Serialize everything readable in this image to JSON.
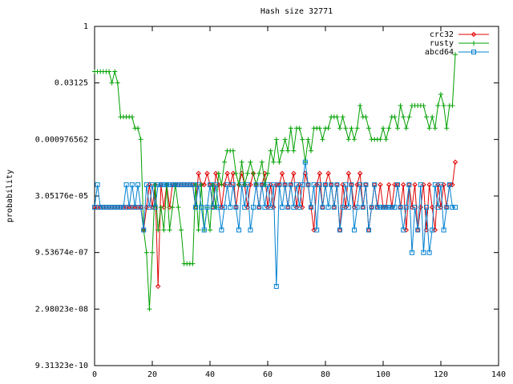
{
  "chart_data": {
    "type": "line",
    "title": "Hash size 32771",
    "y_label": "probability",
    "log_scale": "y",
    "log_base": 2,
    "legend": "upper right",
    "xlim": [
      0,
      140
    ],
    "xticks": [
      0,
      20,
      40,
      60,
      80,
      100,
      120,
      140
    ],
    "ylim": [
      9.31323e-10,
      1
    ],
    "yticks": [
      1,
      0.03125,
      0.000976562,
      {
        "value": 3.05176e-05,
        "label": "3.05176e-05"
      },
      {
        "value": 9.53674e-07,
        "label": "9.53674e-07"
      },
      {
        "value": 2.98023e-08,
        "label": "2.98023e-08"
      },
      {
        "value": 9.31323e-10,
        "label": "9.31323e-10"
      }
    ],
    "x": [
      0,
      1,
      2,
      3,
      4,
      5,
      6,
      7,
      8,
      9,
      10,
      11,
      12,
      13,
      14,
      15,
      16,
      17,
      18,
      19,
      20,
      21,
      22,
      23,
      24,
      25,
      26,
      27,
      28,
      29,
      30,
      31,
      32,
      33,
      34,
      35,
      36,
      37,
      38,
      39,
      40,
      41,
      42,
      43,
      44,
      45,
      46,
      47,
      48,
      49,
      50,
      51,
      52,
      53,
      54,
      55,
      56,
      57,
      58,
      59,
      60,
      61,
      62,
      63,
      64,
      65,
      66,
      67,
      68,
      69,
      70,
      71,
      72,
      73,
      74,
      75,
      76,
      77,
      78,
      79,
      80,
      81,
      82,
      83,
      84,
      85,
      86,
      87,
      88,
      89,
      90,
      91,
      92,
      93,
      94,
      95,
      96,
      97,
      98,
      99,
      100,
      101,
      102,
      103,
      104,
      105,
      106,
      107,
      108,
      109,
      110,
      111,
      112,
      113,
      114,
      115,
      116,
      117,
      118,
      119,
      120,
      121,
      122,
      123,
      124,
      125
    ],
    "series": [
      {
        "name": "crc32",
        "color": "#e00000",
        "marker": "diamond",
        "values": [
          1.53e-05,
          1.53e-05,
          1.53e-05,
          1.53e-05,
          1.53e-05,
          1.53e-05,
          1.53e-05,
          1.53e-05,
          1.53e-05,
          1.53e-05,
          1.53e-05,
          1.53e-05,
          1.53e-05,
          1.53e-05,
          1.53e-05,
          1.53e-05,
          1.53e-05,
          3.8e-06,
          1.53e-05,
          6.1e-05,
          1.53e-05,
          6.1e-05,
          1.2e-07,
          6.1e-05,
          1.53e-05,
          6.1e-05,
          1.53e-05,
          6.1e-05,
          6.1e-05,
          6.1e-05,
          6.1e-05,
          6.1e-05,
          6.1e-05,
          6.1e-05,
          6.1e-05,
          1.53e-05,
          0.000122,
          6.1e-05,
          6.1e-05,
          0.000122,
          6.1e-05,
          1.53e-05,
          0.000122,
          6.1e-05,
          1.53e-05,
          6.1e-05,
          0.000122,
          6.1e-05,
          0.000122,
          1.53e-05,
          6.1e-05,
          0.000122,
          6.1e-05,
          1.53e-05,
          6.1e-05,
          0.000122,
          6.1e-05,
          1.53e-05,
          6.1e-05,
          0.000122,
          1.53e-05,
          6.1e-05,
          1.53e-05,
          6.1e-05,
          6.1e-05,
          0.000122,
          6.1e-05,
          1.53e-05,
          6.1e-05,
          0.000122,
          1.53e-05,
          6.1e-05,
          1.53e-05,
          0.000122,
          6.1e-05,
          1.53e-05,
          3.8e-06,
          6.1e-05,
          0.000122,
          1.53e-05,
          6.1e-05,
          0.000122,
          6.1e-05,
          1.53e-05,
          6.1e-05,
          3.8e-06,
          6.1e-05,
          1.53e-05,
          0.000122,
          6.1e-05,
          1.53e-05,
          6.1e-05,
          0.000122,
          1.53e-05,
          6.1e-05,
          3.8e-06,
          1.53e-05,
          6.1e-05,
          1.53e-05,
          6.1e-05,
          1.53e-05,
          1.53e-05,
          6.1e-05,
          1.53e-05,
          6.1e-05,
          6.1e-05,
          1.53e-05,
          6.1e-05,
          3.8e-06,
          6.1e-05,
          1.53e-05,
          6.1e-05,
          3.8e-06,
          1.53e-05,
          6.1e-05,
          3.8e-06,
          6.1e-05,
          1.53e-05,
          3.8e-06,
          6.1e-05,
          1.53e-05,
          6.1e-05,
          1.53e-05,
          6.1e-05,
          6.1e-05,
          0.000244
        ]
      },
      {
        "name": "rusty",
        "color": "#00a000",
        "marker": "plus",
        "values": [
          0.0625,
          0.0625,
          0.0625,
          0.0625,
          0.0625,
          0.0625,
          0.03125,
          0.0625,
          0.03125,
          0.0039,
          0.0039,
          0.0039,
          0.0039,
          0.0039,
          0.00195,
          0.00195,
          0.00098,
          3.8e-06,
          9.5e-07,
          3e-08,
          9.5e-07,
          6.1e-05,
          3.8e-06,
          1.53e-05,
          3.8e-06,
          6.1e-05,
          3.8e-06,
          1.53e-05,
          6.1e-05,
          1.53e-05,
          3.8e-06,
          4.8e-07,
          4.8e-07,
          4.8e-07,
          4.8e-07,
          6.1e-05,
          3.8e-06,
          6.1e-05,
          3.8e-06,
          1.53e-05,
          3.8e-06,
          6.1e-05,
          1.53e-05,
          0.000122,
          6.1e-05,
          0.000244,
          0.000488,
          0.000488,
          0.000488,
          0.000122,
          6.1e-05,
          0.000244,
          6.1e-05,
          0.000122,
          0.000244,
          0.000122,
          6.1e-05,
          0.000122,
          0.000244,
          6.1e-05,
          0.000122,
          0.000488,
          0.000244,
          0.000976,
          0.000244,
          0.000488,
          0.000976,
          0.000488,
          0.00195,
          0.000488,
          0.00195,
          0.00195,
          0.000976,
          0.000244,
          0.000976,
          0.000488,
          0.00195,
          0.00195,
          0.00195,
          0.000976,
          0.00195,
          0.00195,
          0.0039,
          0.0039,
          0.0039,
          0.00195,
          0.0039,
          0.00195,
          0.00098,
          0.00195,
          0.00098,
          0.00195,
          0.0078,
          0.0039,
          0.0039,
          0.00195,
          0.00098,
          0.00098,
          0.00098,
          0.00098,
          0.00195,
          0.00098,
          0.00195,
          0.0039,
          0.0039,
          0.00195,
          0.0078,
          0.0039,
          0.00195,
          0.0039,
          0.0078,
          0.0078,
          0.0078,
          0.0078,
          0.0078,
          0.0039,
          0.00195,
          0.0039,
          0.00195,
          0.0078,
          0.0156,
          0.0078,
          0.00195,
          0.0078,
          0.0078,
          0.177
        ]
      },
      {
        "name": "abcd64",
        "color": "#0080d0",
        "marker": "square",
        "values": [
          1.53e-05,
          6.1e-05,
          1.53e-05,
          1.53e-05,
          1.53e-05,
          1.53e-05,
          1.53e-05,
          1.53e-05,
          1.53e-05,
          1.53e-05,
          1.53e-05,
          6.1e-05,
          1.53e-05,
          6.1e-05,
          1.53e-05,
          6.1e-05,
          1.53e-05,
          3.8e-06,
          6.1e-05,
          1.53e-05,
          6.1e-05,
          1.53e-05,
          6.1e-05,
          6.1e-05,
          6.1e-05,
          6.1e-05,
          6.1e-05,
          6.1e-05,
          6.1e-05,
          6.1e-05,
          6.1e-05,
          6.1e-05,
          6.1e-05,
          6.1e-05,
          6.1e-05,
          1.53e-05,
          6.1e-05,
          1.53e-05,
          3.8e-06,
          1.53e-05,
          6.1e-05,
          1.53e-05,
          6.1e-05,
          1.53e-05,
          3.8e-06,
          1.53e-05,
          6.1e-05,
          1.53e-05,
          6.1e-05,
          1.53e-05,
          3.8e-06,
          6.1e-05,
          1.53e-05,
          6.1e-05,
          3.8e-06,
          1.53e-05,
          6.1e-05,
          1.53e-05,
          6.1e-05,
          1.53e-05,
          6.1e-05,
          1.53e-05,
          6.1e-05,
          1.2e-07,
          6.1e-05,
          1.53e-05,
          6.1e-05,
          1.53e-05,
          6.1e-05,
          1.53e-05,
          6.1e-05,
          1.53e-05,
          6.1e-05,
          0.000244,
          6.1e-05,
          1.53e-05,
          6.1e-05,
          3.8e-06,
          6.1e-05,
          1.53e-05,
          6.1e-05,
          1.53e-05,
          6.1e-05,
          1.53e-05,
          6.1e-05,
          3.8e-06,
          1.53e-05,
          6.1e-05,
          1.53e-05,
          6.1e-05,
          3.8e-06,
          1.53e-05,
          6.1e-05,
          1.53e-05,
          6.1e-05,
          3.8e-06,
          1.53e-05,
          6.1e-05,
          1.53e-05,
          1.53e-05,
          1.53e-05,
          1.53e-05,
          1.53e-05,
          1.53e-05,
          1.53e-05,
          6.1e-05,
          1.53e-05,
          3.8e-06,
          1.53e-05,
          6.1e-05,
          9.5e-07,
          1.53e-05,
          3.8e-06,
          6.1e-05,
          9.5e-07,
          1.53e-05,
          9.5e-07,
          3.8e-06,
          6.1e-05,
          1.53e-05,
          6.1e-05,
          3.8e-06,
          1.53e-05,
          6.1e-05,
          1.53e-05,
          1.53e-05
        ]
      }
    ]
  }
}
